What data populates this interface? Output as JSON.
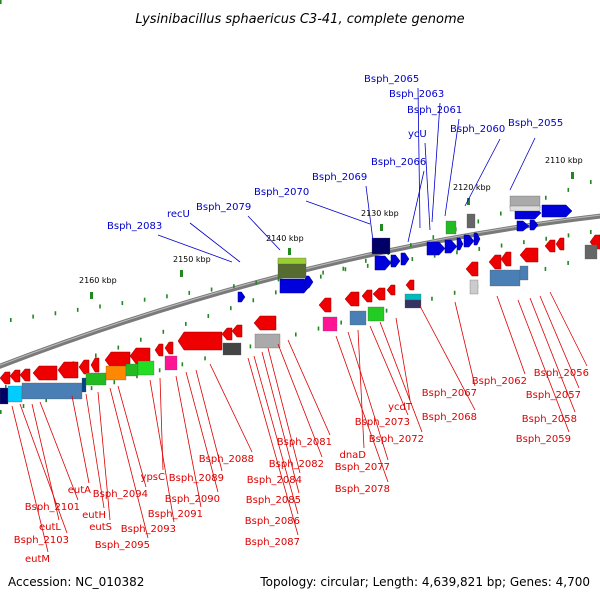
{
  "title": "Lysinibacillus sphaericus C3-41, complete genome",
  "footer": {
    "accession": "Accession: NC_010382",
    "info": "Topology: circular; Length: 4,639,821 bp; Genes: 4,700"
  },
  "colors": {
    "forward": "#0000cc",
    "reverse": "#dd0000",
    "backbone": "#888888",
    "tick": "#228822"
  },
  "ticks": [
    "2110 kbp",
    "2120 kbp",
    "2130 kbp",
    "2140 kbp",
    "2150 kbp",
    "2160 kbp"
  ],
  "forward_labels": [
    "Bsph_2055",
    "Bsph_2060",
    "Bsph_2061",
    "Bsph_2063",
    "Bsph_2065",
    "ycU",
    "Bsph_2066",
    "Bsph_2069",
    "Bsph_2070",
    "Bsph_2079",
    "recU",
    "Bsph_2083"
  ],
  "reverse_labels": [
    "Bsph_2056",
    "Bsph_2057",
    "Bsph_2058",
    "Bsph_2059",
    "Bsph_2062",
    "Bsph_2067",
    "Bsph_2068",
    "ycdT",
    "Bsph_2072",
    "Bsph_2073",
    "dnaD",
    "Bsph_2077",
    "Bsph_2078",
    "Bsph_2081",
    "Bsph_2082",
    "Bsph_2084",
    "Bsph_2085",
    "Bsph_2086",
    "Bsph_2087",
    "Bsph_2088",
    "Bsph_2089",
    "Bsph_2090",
    "Bsph_2091",
    "ypsC",
    "Bsph_2093",
    "Bsph_2094",
    "Bsph_2095",
    "eutA",
    "eutH",
    "eutS",
    "Bsph_2101",
    "eutL",
    "Bsph_2103",
    "eutM"
  ]
}
